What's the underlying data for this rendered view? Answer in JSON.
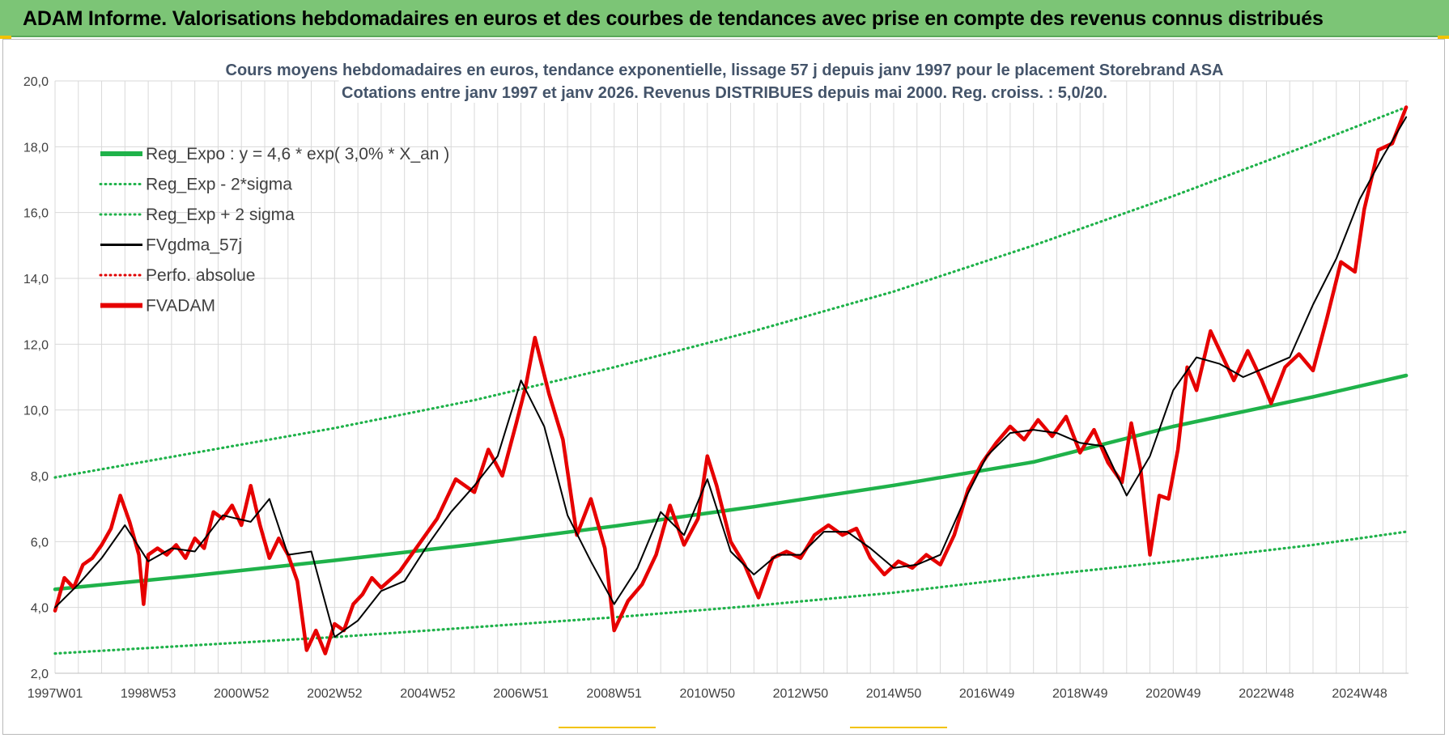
{
  "banner": {
    "title": "ADAM Informe. Valorisations hebdomadaires en euros et des courbes de tendances avec prise en compte des revenus connus distribués"
  },
  "colors": {
    "banner_bg": "#7cc576",
    "reg_expo": "#1fb24a",
    "sigma": "#1fb24a",
    "fvgdma": "#000000",
    "perfo": "#e00000",
    "fvadam": "#e60000",
    "grid": "#d9d9d9"
  },
  "chart_data": {
    "type": "line",
    "title": [
      "Cours moyens hebdomadaires en euros, tendance exponentielle, lissage 57 j depuis janv 1997  pour le placement Storebrand ASA",
      "Cotations entre janv 1997 et janv 2026. Revenus DISTRIBUES depuis mai 2000. Reg. croiss. : 5,0/20."
    ],
    "xlabel": "",
    "ylabel": "",
    "x_range": [
      1997.0,
      2026.05
    ],
    "ylim": [
      2.0,
      20.0
    ],
    "y_ticks": [
      "2,0",
      "4,0",
      "6,0",
      "8,0",
      "10,0",
      "12,0",
      "14,0",
      "16,0",
      "18,0",
      "20,0"
    ],
    "x_ticks": [
      {
        "label": "1997W01",
        "x": 1997.0
      },
      {
        "label": "1998W53",
        "x": 1999.0
      },
      {
        "label": "2000W52",
        "x": 2001.0
      },
      {
        "label": "2002W52",
        "x": 2003.0
      },
      {
        "label": "2004W52",
        "x": 2005.0
      },
      {
        "label": "2006W51",
        "x": 2007.0
      },
      {
        "label": "2008W51",
        "x": 2009.0
      },
      {
        "label": "2010W50",
        "x": 2011.0
      },
      {
        "label": "2012W50",
        "x": 2013.0
      },
      {
        "label": "2014W50",
        "x": 2015.0
      },
      {
        "label": "2016W49",
        "x": 2017.0
      },
      {
        "label": "2018W49",
        "x": 2019.0
      },
      {
        "label": "2020W49",
        "x": 2021.0
      },
      {
        "label": "2022W48",
        "x": 2023.0
      },
      {
        "label": "2024W48",
        "x": 2025.0
      }
    ],
    "grid": true,
    "legend_position": "top-left",
    "series": [
      {
        "name": "Reg_Expo : y = 4,6 * exp( 3,0% *  X_an )",
        "style": "solid-thick",
        "color": "#1fb24a",
        "x": [
          1997.0,
          2000.0,
          2003.0,
          2006.0,
          2009.0,
          2012.0,
          2015.0,
          2018.0,
          2021.0,
          2024.0,
          2026.0
        ],
        "y": [
          4.55,
          4.97,
          5.43,
          5.92,
          6.47,
          7.06,
          7.71,
          8.42,
          9.5,
          10.4,
          11.05
        ]
      },
      {
        "name": "Reg_Exp - 2*sigma",
        "style": "dotted",
        "color": "#1fb24a",
        "x": [
          1997.0,
          2000.0,
          2003.0,
          2006.0,
          2009.0,
          2012.0,
          2015.0,
          2018.0,
          2021.0,
          2024.0,
          2026.0
        ],
        "y": [
          2.6,
          2.85,
          3.1,
          3.4,
          3.7,
          4.05,
          4.45,
          4.95,
          5.4,
          5.9,
          6.3
        ]
      },
      {
        "name": "Reg_Exp + 2 sigma",
        "style": "dotted",
        "color": "#1fb24a",
        "x": [
          1997.0,
          2000.0,
          2003.0,
          2006.0,
          2009.0,
          2012.0,
          2015.0,
          2018.0,
          2021.0,
          2024.0,
          2026.0
        ],
        "y": [
          7.95,
          8.7,
          9.45,
          10.3,
          11.3,
          12.4,
          13.6,
          15.0,
          16.5,
          18.1,
          19.2
        ]
      },
      {
        "name": "FVgdma_57j",
        "style": "solid",
        "color": "#000000",
        "x": [
          1997.0,
          1997.5,
          1998.0,
          1998.5,
          1999.0,
          1999.5,
          2000.0,
          2000.6,
          2001.2,
          2001.6,
          2002.0,
          2002.5,
          2003.0,
          2003.5,
          2004.0,
          2004.5,
          2005.0,
          2005.5,
          2006.0,
          2006.5,
          2007.0,
          2007.5,
          2008.0,
          2008.5,
          2009.0,
          2009.5,
          2010.0,
          2010.5,
          2011.0,
          2011.5,
          2012.0,
          2012.5,
          2013.0,
          2013.5,
          2014.0,
          2014.5,
          2015.0,
          2015.5,
          2016.0,
          2016.5,
          2017.0,
          2017.5,
          2018.0,
          2018.5,
          2019.0,
          2019.5,
          2020.0,
          2020.5,
          2021.0,
          2021.5,
          2022.0,
          2022.5,
          2023.0,
          2023.5,
          2024.0,
          2024.5,
          2025.0,
          2025.5,
          2026.0
        ],
        "y": [
          4.0,
          4.7,
          5.5,
          6.5,
          5.4,
          5.8,
          5.7,
          6.8,
          6.6,
          7.3,
          5.6,
          5.7,
          3.1,
          3.6,
          4.5,
          4.8,
          5.9,
          6.9,
          7.7,
          8.6,
          10.9,
          9.5,
          6.8,
          5.4,
          4.1,
          5.2,
          6.9,
          6.2,
          7.9,
          5.7,
          5.0,
          5.6,
          5.6,
          6.3,
          6.3,
          5.8,
          5.2,
          5.3,
          5.6,
          7.2,
          8.6,
          9.3,
          9.4,
          9.3,
          9.0,
          8.9,
          7.4,
          8.6,
          10.6,
          11.6,
          11.4,
          11.0,
          11.3,
          11.6,
          13.2,
          14.6,
          16.4,
          17.7,
          18.9
        ]
      },
      {
        "name": "Perfo. absolue",
        "style": "dotted",
        "color": "#e00000",
        "x": [],
        "y": []
      },
      {
        "name": "FVADAM",
        "style": "solid-thick",
        "color": "#e60000",
        "x": [
          1997.0,
          1997.2,
          1997.4,
          1997.6,
          1997.8,
          1998.0,
          1998.2,
          1998.4,
          1998.6,
          1998.8,
          1998.9,
          1999.0,
          1999.2,
          1999.4,
          1999.6,
          1999.8,
          2000.0,
          2000.2,
          2000.4,
          2000.6,
          2000.8,
          2001.0,
          2001.2,
          2001.4,
          2001.6,
          2001.8,
          2002.0,
          2002.2,
          2002.4,
          2002.6,
          2002.8,
          2003.0,
          2003.2,
          2003.4,
          2003.6,
          2003.8,
          2004.0,
          2004.4,
          2004.8,
          2005.2,
          2005.6,
          2006.0,
          2006.3,
          2006.6,
          2006.9,
          2007.1,
          2007.3,
          2007.6,
          2007.9,
          2008.2,
          2008.5,
          2008.8,
          2009.0,
          2009.3,
          2009.6,
          2009.9,
          2010.2,
          2010.5,
          2010.8,
          2011.0,
          2011.2,
          2011.5,
          2011.8,
          2012.1,
          2012.4,
          2012.7,
          2013.0,
          2013.3,
          2013.6,
          2013.9,
          2014.2,
          2014.5,
          2014.8,
          2015.1,
          2015.4,
          2015.7,
          2016.0,
          2016.3,
          2016.6,
          2016.9,
          2017.2,
          2017.5,
          2017.8,
          2018.1,
          2018.4,
          2018.7,
          2019.0,
          2019.3,
          2019.6,
          2019.9,
          2020.1,
          2020.3,
          2020.5,
          2020.7,
          2020.9,
          2021.1,
          2021.3,
          2021.5,
          2021.8,
          2022.0,
          2022.3,
          2022.6,
          2022.9,
          2023.1,
          2023.4,
          2023.7,
          2024.0,
          2024.3,
          2024.6,
          2024.9,
          2025.1,
          2025.4,
          2025.7,
          2026.0
        ],
        "y": [
          3.9,
          4.9,
          4.6,
          5.3,
          5.5,
          5.9,
          6.4,
          7.4,
          6.6,
          5.6,
          4.1,
          5.6,
          5.8,
          5.6,
          5.9,
          5.5,
          6.1,
          5.8,
          6.9,
          6.7,
          7.1,
          6.5,
          7.7,
          6.5,
          5.5,
          6.1,
          5.6,
          4.8,
          2.7,
          3.3,
          2.6,
          3.5,
          3.3,
          4.1,
          4.4,
          4.9,
          4.6,
          5.1,
          5.9,
          6.7,
          7.9,
          7.5,
          8.8,
          8.0,
          9.6,
          10.7,
          12.2,
          10.5,
          9.1,
          6.2,
          7.3,
          5.8,
          3.3,
          4.2,
          4.7,
          5.6,
          7.1,
          5.9,
          6.7,
          8.6,
          7.7,
          6.0,
          5.3,
          4.3,
          5.5,
          5.7,
          5.5,
          6.2,
          6.5,
          6.2,
          6.4,
          5.5,
          5.0,
          5.4,
          5.2,
          5.6,
          5.3,
          6.2,
          7.6,
          8.4,
          9.0,
          9.5,
          9.1,
          9.7,
          9.2,
          9.8,
          8.7,
          9.4,
          8.4,
          7.8,
          9.6,
          8.2,
          5.6,
          7.4,
          7.3,
          8.8,
          11.3,
          10.6,
          12.4,
          11.8,
          10.9,
          11.8,
          10.9,
          10.2,
          11.3,
          11.7,
          11.2,
          12.8,
          14.5,
          14.2,
          16.1,
          17.9,
          18.1,
          19.2
        ]
      }
    ]
  }
}
